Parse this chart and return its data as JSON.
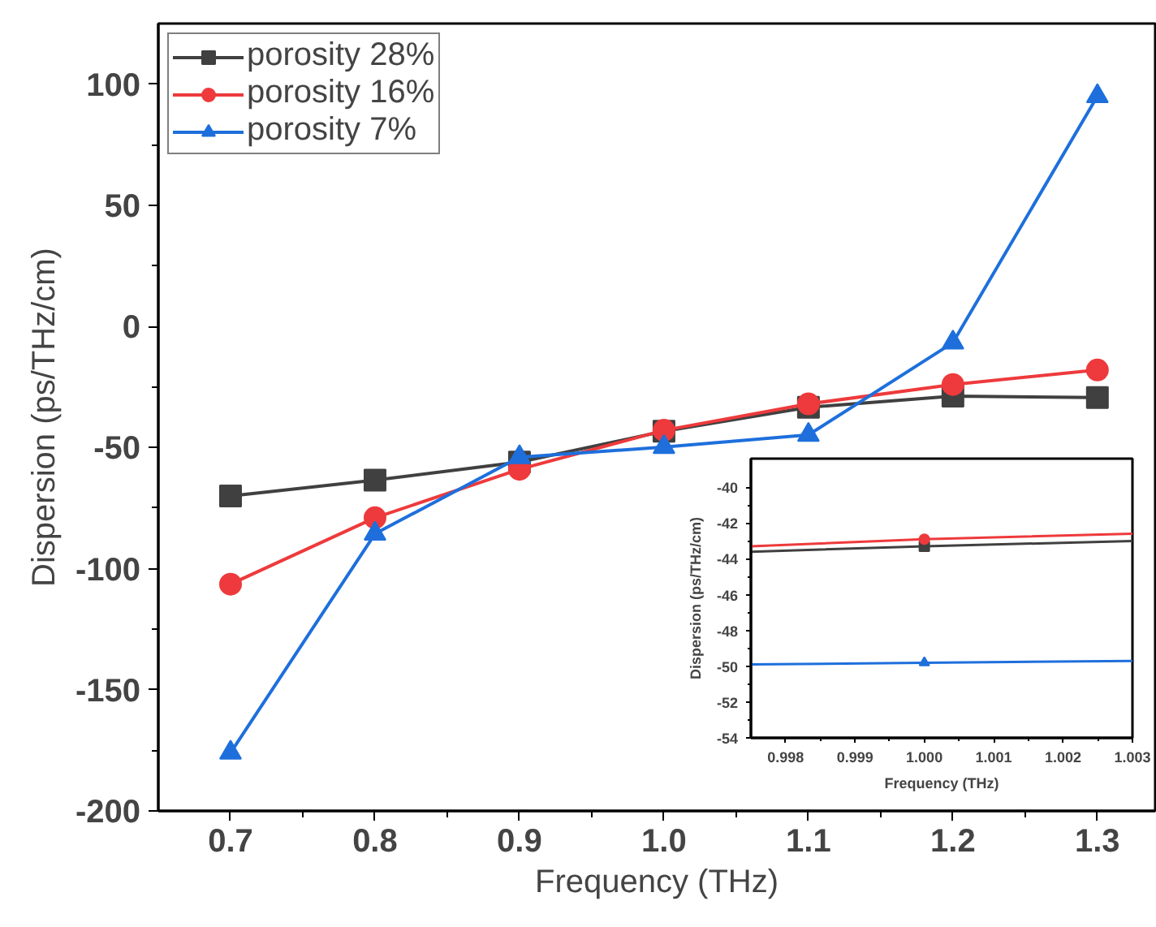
{
  "chart_data": [
    {
      "type": "line",
      "xlabel": "Frequency (THz)",
      "ylabel": "Dispersion (ps/THz/cm)",
      "x": [
        0.7,
        0.8,
        0.9,
        1.0,
        1.1,
        1.2,
        1.3
      ],
      "xlim": [
        0.65,
        1.34
      ],
      "xticks": [
        {
          "value": 0.7,
          "label": "0.7"
        },
        {
          "value": 0.8,
          "label": "0.8"
        },
        {
          "value": 0.9,
          "label": "0.9"
        },
        {
          "value": 1.0,
          "label": "1.0"
        },
        {
          "value": 1.1,
          "label": "1.1"
        },
        {
          "value": 1.2,
          "label": "1.2"
        },
        {
          "value": 1.3,
          "label": "1.3"
        }
      ],
      "ylim": [
        -200,
        125
      ],
      "yticks": [
        -200,
        -150,
        -100,
        -50,
        0,
        50,
        100
      ],
      "legend": "top left",
      "line_style": "solid",
      "series": [
        {
          "name": "porosity 28%",
          "color": "#404040",
          "marker": "square",
          "values": [
            -70,
            -63.5,
            -56,
            -43.3,
            -33.4,
            -28.8,
            -29.4
          ]
        },
        {
          "name": "porosity 16%",
          "color": "#ee3a3c",
          "marker": "circle",
          "values": [
            -106.4,
            -79,
            -59,
            -42.9,
            -32,
            -24,
            -18
          ]
        },
        {
          "name": "porosity 7%",
          "color": "#1e6fdc",
          "marker": "triangle",
          "values": [
            -176,
            -85.6,
            -54,
            -49.8,
            -44.8,
            -6.7,
            95
          ]
        }
      ]
    },
    {
      "type": "line",
      "xlabel": "Frequency (THz)",
      "ylabel": "Dispersion (ps/THz/cm)",
      "xlim": [
        0.9975,
        1.003
      ],
      "xticks": [
        {
          "value": 0.998,
          "label": "0.998"
        },
        {
          "value": 0.999,
          "label": "0.999"
        },
        {
          "value": 1.0,
          "label": "1.000"
        },
        {
          "value": 1.001,
          "label": "1.001"
        },
        {
          "value": 1.002,
          "label": "1.002"
        },
        {
          "value": 1.003,
          "label": "1.003"
        }
      ],
      "ylim": [
        -54,
        -38.4
      ],
      "yticks": [
        -54,
        -52,
        -50,
        -48,
        -46,
        -44,
        -42,
        -40
      ],
      "line_style": "solid",
      "series": [
        {
          "color": "#404040",
          "marker": "none",
          "x": [
            0.9975,
            1.0,
            1.003
          ],
          "values": [
            -43.6,
            -43.3,
            -43.0
          ]
        },
        {
          "color": "#ee3a3c",
          "marker": "none",
          "x": [
            0.9975,
            1.0,
            1.003
          ],
          "values": [
            -43.3,
            -42.9,
            -42.6
          ]
        },
        {
          "color": "#1e6fdc",
          "marker": "none",
          "x": [
            0.9975,
            1.0,
            1.003
          ],
          "values": [
            -49.9,
            -49.8,
            -49.7
          ]
        },
        {
          "color": "#404040",
          "marker": "square",
          "x": [
            1.0
          ],
          "values": [
            -43.3
          ]
        },
        {
          "color": "#ee3a3c",
          "marker": "circle",
          "x": [
            1.0
          ],
          "values": [
            -42.9
          ]
        },
        {
          "color": "#1e6fdc",
          "marker": "triangle",
          "x": [
            1.0
          ],
          "values": [
            -49.8
          ]
        }
      ]
    }
  ]
}
